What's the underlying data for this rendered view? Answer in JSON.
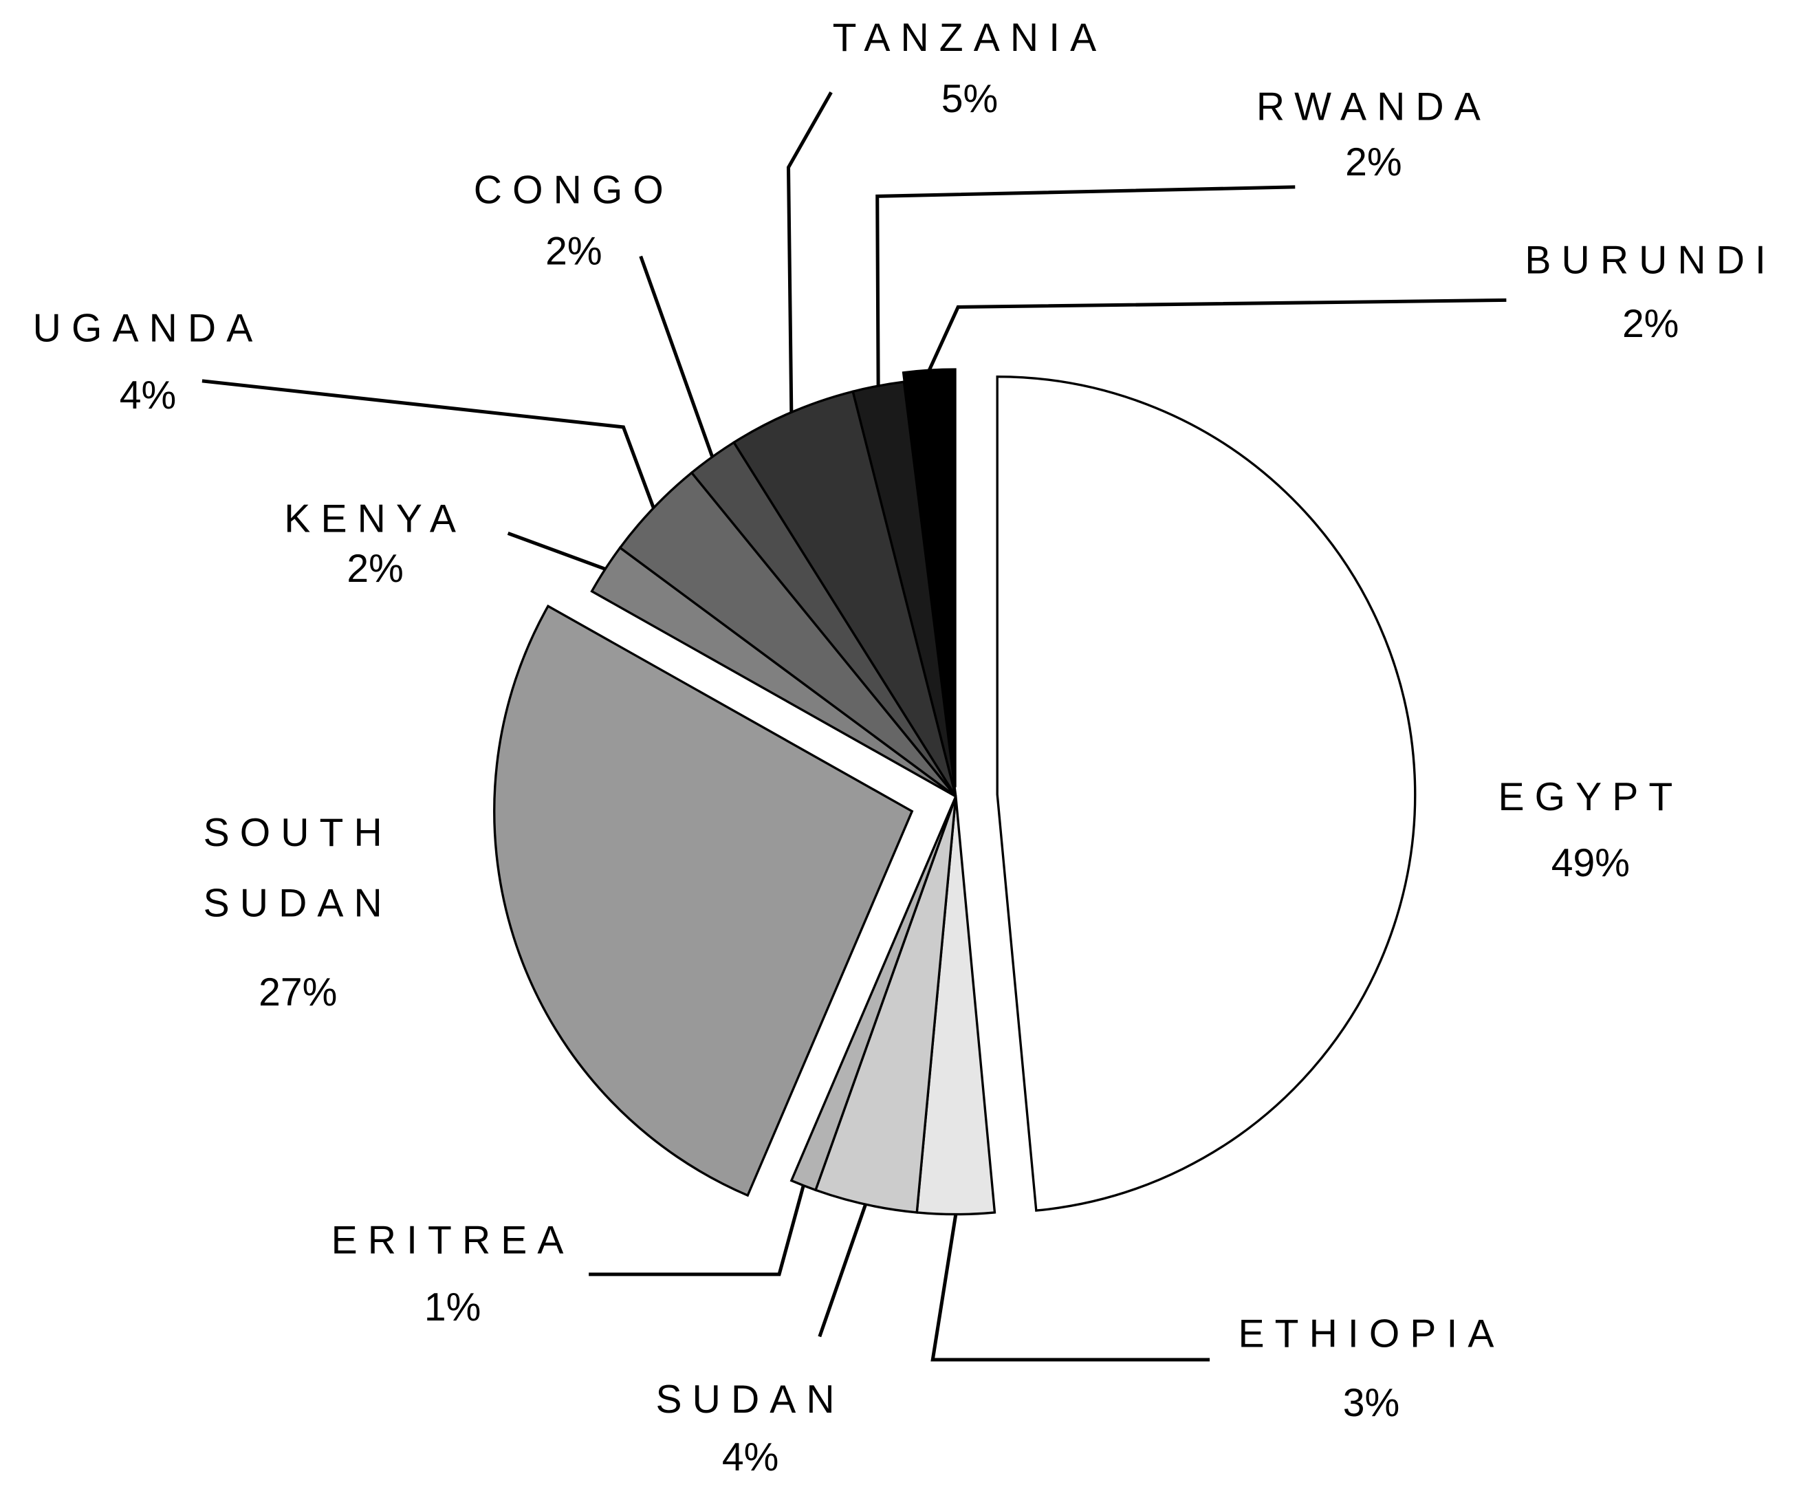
{
  "chart_data": {
    "type": "pie",
    "categories": [
      "EGYPT",
      "ETHIOPIA",
      "SUDAN",
      "ERITREA",
      "SOUTH SUDAN",
      "KENYA",
      "UGANDA",
      "CONGO",
      "TANZANIA",
      "RWANDA",
      "BURUNDI"
    ],
    "values": [
      49,
      3,
      4,
      1,
      27,
      2,
      4,
      2,
      5,
      2,
      2
    ],
    "value_labels": [
      "49%",
      "3%",
      "4%",
      "1%",
      "27%",
      "2%",
      "4%",
      "2%",
      "5%",
      "2%",
      "2%"
    ],
    "colors": [
      "#ffffff",
      "#e6e6e6",
      "#cccccc",
      "#b3b3b3",
      "#999999",
      "#808080",
      "#666666",
      "#4d4d4d",
      "#333333",
      "#1a1a1a",
      "#000000"
    ]
  }
}
